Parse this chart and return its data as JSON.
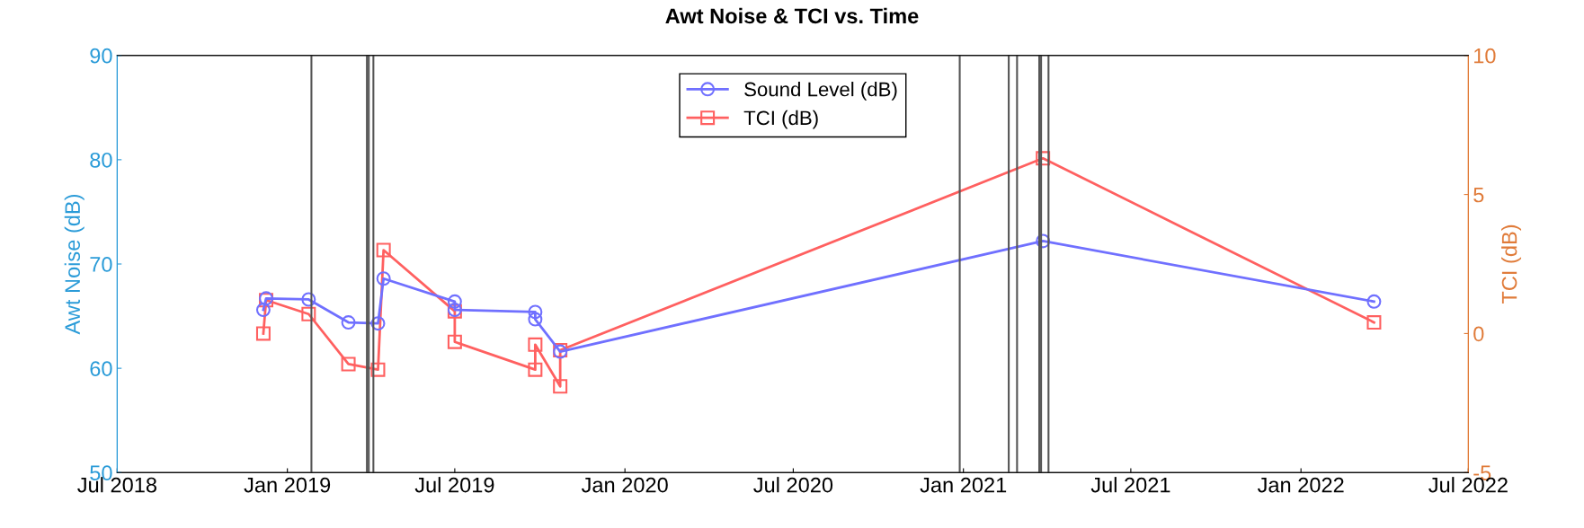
{
  "chart_data": {
    "type": "line",
    "title": "Awt Noise & TCI vs. Time",
    "ylabel": "Awt Noise (dB)",
    "y2label": "TCI (dB)",
    "xlim": [
      "2018-07-01",
      "2022-07-01"
    ],
    "xticks": [
      {
        "value": "2018-07-01",
        "label": "Jul 2018"
      },
      {
        "value": "2019-01-01",
        "label": "Jan 2019"
      },
      {
        "value": "2019-07-01",
        "label": "Jul 2019"
      },
      {
        "value": "2020-01-01",
        "label": "Jan 2020"
      },
      {
        "value": "2020-07-01",
        "label": "Jul 2020"
      },
      {
        "value": "2021-01-01",
        "label": "Jan 2021"
      },
      {
        "value": "2021-07-01",
        "label": "Jul 2021"
      },
      {
        "value": "2022-01-01",
        "label": "Jan 2022"
      },
      {
        "value": "2022-07-01",
        "label": "Jul 2022"
      }
    ],
    "ylim": [
      50,
      90
    ],
    "yticks": [
      50,
      60,
      70,
      80,
      90
    ],
    "y2lim": [
      -5,
      10
    ],
    "y2ticks": [
      -5,
      0,
      5,
      10
    ],
    "grid": false,
    "legend": "top",
    "line_style": "solid",
    "series": [
      {
        "name": "Sound Level (dB)",
        "color": "#7070ff",
        "marker": "circle",
        "x": [
          "2018-12-06",
          "2018-12-09",
          "2019-01-24",
          "2019-03-08",
          "2019-04-09",
          "2019-04-15",
          "2019-07-01",
          "2019-07-01",
          "2019-09-26",
          "2019-09-26",
          "2019-10-23",
          "2021-03-28",
          "2022-03-21"
        ],
        "values": [
          65.6,
          66.7,
          66.6,
          64.4,
          64.3,
          68.6,
          66.4,
          65.6,
          65.4,
          64.7,
          61.6,
          72.2,
          66.4
        ]
      },
      {
        "name": "TCI (dB)",
        "color": "#ff6060",
        "marker": "square",
        "axis": "y2",
        "x": [
          "2018-12-06",
          "2018-12-09",
          "2019-01-24",
          "2019-03-08",
          "2019-04-09",
          "2019-04-15",
          "2019-07-01",
          "2019-07-01",
          "2019-09-26",
          "2019-09-26",
          "2019-10-23",
          "2019-10-23",
          "2021-03-28",
          "2022-03-21"
        ],
        "values": [
          0.0,
          1.2,
          0.7,
          -1.1,
          -1.3,
          3.0,
          0.8,
          -0.3,
          -1.3,
          -0.4,
          -1.9,
          -0.6,
          6.3,
          0.4
        ]
      }
    ],
    "ref_lines": [
      {
        "axis": "x",
        "value": "2019-01-27",
        "color": "#555555"
      },
      {
        "axis": "x",
        "value": "2019-03-28",
        "color": "#555555"
      },
      {
        "axis": "x",
        "value": "2019-03-30",
        "color": "#555555"
      },
      {
        "axis": "x",
        "value": "2019-04-04",
        "color": "#555555"
      },
      {
        "axis": "x",
        "value": "2020-12-28",
        "color": "#555555"
      },
      {
        "axis": "x",
        "value": "2021-02-19",
        "color": "#555555"
      },
      {
        "axis": "x",
        "value": "2021-02-28",
        "color": "#555555"
      },
      {
        "axis": "x",
        "value": "2021-03-24",
        "color": "#555555"
      },
      {
        "axis": "x",
        "value": "2021-03-26",
        "color": "#555555"
      },
      {
        "axis": "x",
        "value": "2021-04-03",
        "color": "#555555"
      }
    ]
  }
}
